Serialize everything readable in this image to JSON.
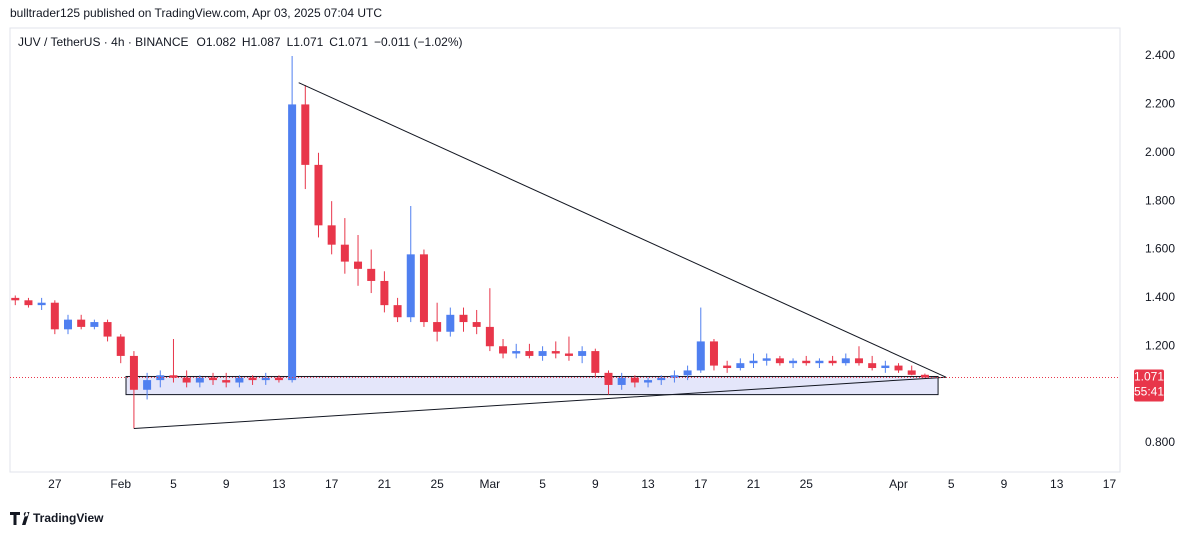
{
  "header": {
    "publisher": "bulltrader125 published on TradingView.com, Apr 03, 2025 07:04 UTC",
    "symbol": "JUV / TetherUS · 4h · BINANCE",
    "open_label": "O",
    "open": 1.082,
    "high_label": "H",
    "high": 1.087,
    "low_label": "L",
    "low": 1.071,
    "close_label": "C",
    "close": 1.071,
    "change": "−0.011 (−1.02%)"
  },
  "chart_data": {
    "type": "candlestick",
    "x": [
      24,
      25,
      26,
      27,
      28,
      29,
      30,
      31,
      32,
      33,
      34,
      35,
      36,
      37,
      38,
      39,
      40,
      41,
      42,
      43,
      44,
      45,
      46,
      47,
      48,
      49,
      50,
      51,
      52,
      53,
      54,
      55,
      56,
      57,
      58,
      59,
      60,
      61,
      62,
      63,
      64,
      65,
      66,
      67,
      68,
      69,
      70,
      71,
      72,
      73,
      74,
      75,
      76,
      77,
      78,
      79,
      80,
      81,
      82,
      83,
      84,
      85,
      86,
      87,
      88,
      89,
      90,
      91,
      92,
      93
    ],
    "open": [
      1.4,
      1.39,
      1.37,
      1.38,
      1.27,
      1.31,
      1.28,
      1.3,
      1.24,
      1.16,
      1.02,
      1.06,
      1.08,
      1.07,
      1.05,
      1.07,
      1.06,
      1.05,
      1.07,
      1.06,
      1.07,
      1.06,
      2.2,
      1.95,
      1.7,
      1.62,
      1.55,
      1.52,
      1.47,
      1.37,
      1.32,
      1.58,
      1.3,
      1.26,
      1.33,
      1.3,
      1.28,
      1.2,
      1.17,
      1.18,
      1.16,
      1.18,
      1.17,
      1.16,
      1.18,
      1.09,
      1.04,
      1.07,
      1.05,
      1.06,
      1.07,
      1.08,
      1.1,
      1.22,
      1.12,
      1.11,
      1.13,
      1.14,
      1.15,
      1.13,
      1.14,
      1.13,
      1.14,
      1.13,
      1.15,
      1.13,
      1.11,
      1.12,
      1.1,
      1.082
    ],
    "high": [
      1.41,
      1.4,
      1.4,
      1.39,
      1.33,
      1.33,
      1.31,
      1.31,
      1.25,
      1.18,
      1.09,
      1.1,
      1.23,
      1.1,
      1.08,
      1.09,
      1.09,
      1.08,
      1.08,
      1.09,
      1.08,
      2.4,
      2.28,
      2.0,
      1.8,
      1.73,
      1.66,
      1.6,
      1.51,
      1.4,
      1.78,
      1.6,
      1.38,
      1.36,
      1.36,
      1.35,
      1.44,
      1.23,
      1.21,
      1.21,
      1.2,
      1.22,
      1.24,
      1.2,
      1.19,
      1.1,
      1.09,
      1.08,
      1.07,
      1.08,
      1.1,
      1.12,
      1.36,
      1.23,
      1.14,
      1.15,
      1.17,
      1.17,
      1.16,
      1.15,
      1.16,
      1.15,
      1.16,
      1.17,
      1.2,
      1.16,
      1.14,
      1.13,
      1.12,
      1.087
    ],
    "low": [
      1.37,
      1.36,
      1.35,
      1.25,
      1.25,
      1.27,
      1.27,
      1.22,
      1.13,
      0.86,
      0.98,
      1.03,
      1.05,
      1.03,
      1.03,
      1.04,
      1.03,
      1.03,
      1.04,
      1.04,
      1.05,
      1.05,
      1.85,
      1.65,
      1.58,
      1.5,
      1.45,
      1.42,
      1.34,
      1.3,
      1.3,
      1.28,
      1.22,
      1.24,
      1.26,
      1.25,
      1.18,
      1.15,
      1.15,
      1.15,
      1.14,
      1.15,
      1.14,
      1.13,
      1.07,
      1.0,
      1.02,
      1.03,
      1.03,
      1.04,
      1.05,
      1.06,
      1.09,
      1.1,
      1.09,
      1.1,
      1.11,
      1.12,
      1.12,
      1.11,
      1.12,
      1.11,
      1.12,
      1.12,
      1.12,
      1.1,
      1.09,
      1.09,
      1.08,
      1.071
    ],
    "close": [
      1.39,
      1.37,
      1.38,
      1.27,
      1.31,
      1.28,
      1.3,
      1.24,
      1.16,
      1.02,
      1.06,
      1.08,
      1.07,
      1.05,
      1.07,
      1.06,
      1.05,
      1.07,
      1.06,
      1.07,
      1.06,
      2.2,
      1.95,
      1.7,
      1.62,
      1.55,
      1.52,
      1.47,
      1.37,
      1.32,
      1.58,
      1.3,
      1.26,
      1.33,
      1.3,
      1.28,
      1.2,
      1.17,
      1.18,
      1.16,
      1.18,
      1.17,
      1.16,
      1.18,
      1.09,
      1.04,
      1.07,
      1.05,
      1.06,
      1.07,
      1.08,
      1.1,
      1.22,
      1.12,
      1.11,
      1.13,
      1.14,
      1.15,
      1.13,
      1.14,
      1.13,
      1.14,
      1.13,
      1.15,
      1.13,
      1.11,
      1.12,
      1.1,
      1.082,
      1.071
    ],
    "up_color": "#4f7ff0",
    "down_color": "#e8364a",
    "xlim": [
      23.6,
      107.8
    ],
    "xticks": [
      27,
      {
        "value": 32,
        "label": "Feb"
      },
      {
        "value": 36,
        "label": "5"
      },
      {
        "value": 40,
        "label": "9"
      },
      {
        "value": 44,
        "label": "13"
      },
      {
        "value": 48,
        "label": "17"
      },
      {
        "value": 52,
        "label": "21"
      },
      {
        "value": 56,
        "label": "25"
      },
      {
        "value": 60,
        "label": "Mar"
      },
      {
        "value": 64,
        "label": "5"
      },
      {
        "value": 68,
        "label": "9"
      },
      {
        "value": 72,
        "label": "13"
      },
      {
        "value": 76,
        "label": "17"
      },
      {
        "value": 80,
        "label": "21"
      },
      {
        "value": 84,
        "label": "25"
      },
      {
        "value": 91,
        "label": "Apr"
      },
      {
        "value": 95,
        "label": "5"
      },
      {
        "value": 99,
        "label": "9"
      },
      {
        "value": 103,
        "label": "13"
      },
      {
        "value": 107,
        "label": "17"
      }
    ],
    "ylim": [
      0.68,
      2.516
    ],
    "yticks": [
      {
        "value": 0.8,
        "label": "0.800"
      },
      {
        "value": 1.2,
        "label": "1.200"
      },
      {
        "value": 1.4,
        "label": "1.400"
      },
      {
        "value": 1.6,
        "label": "1.600"
      },
      {
        "value": 1.8,
        "label": "1.800"
      },
      {
        "value": 2.0,
        "label": "2.000"
      },
      {
        "value": 2.2,
        "label": "2.200"
      },
      {
        "value": 2.4,
        "label": "2.400"
      }
    ],
    "trendlines": [
      {
        "x": [
          45.5,
          94.6
        ],
        "y": [
          2.29,
          1.072
        ]
      },
      {
        "x": [
          33,
          94.6
        ],
        "y": [
          0.86,
          1.072
        ]
      }
    ],
    "zone": {
      "x": [
        32.4,
        94.0
      ],
      "y": [
        1.0,
        1.075
      ]
    },
    "last_price": 1.071,
    "countdown": "55:41"
  },
  "footer": {
    "brand": "TradingView"
  }
}
